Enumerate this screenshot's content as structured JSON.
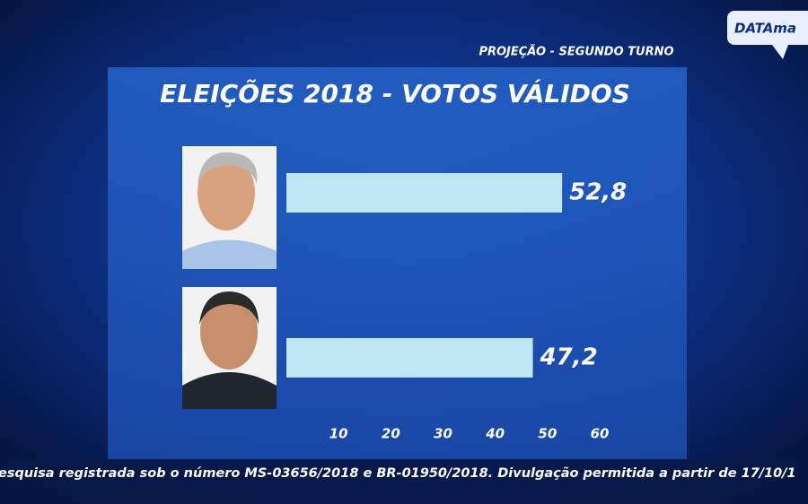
{
  "chart_data": {
    "type": "bar",
    "orientation": "horizontal",
    "logo": "DATAma",
    "subtitle": "PROJEÇÃO - SEGUNDO TURNO",
    "title": "ELEIÇÕES 2018 - VOTOS VÁLIDOS",
    "categories": [
      null,
      null
    ],
    "values": [
      52.8,
      47.2
    ],
    "value_labels": [
      "52,8",
      "47,2"
    ],
    "color": "#bde6f2",
    "xlim": [
      0,
      60
    ],
    "xticks": [
      10,
      20,
      30,
      40,
      50,
      60
    ],
    "footnote": "esquisa registrada sob o número MS-03656/2018 e BR-01950/2018. Divulgação permitida a partir de 17/10/1"
  }
}
